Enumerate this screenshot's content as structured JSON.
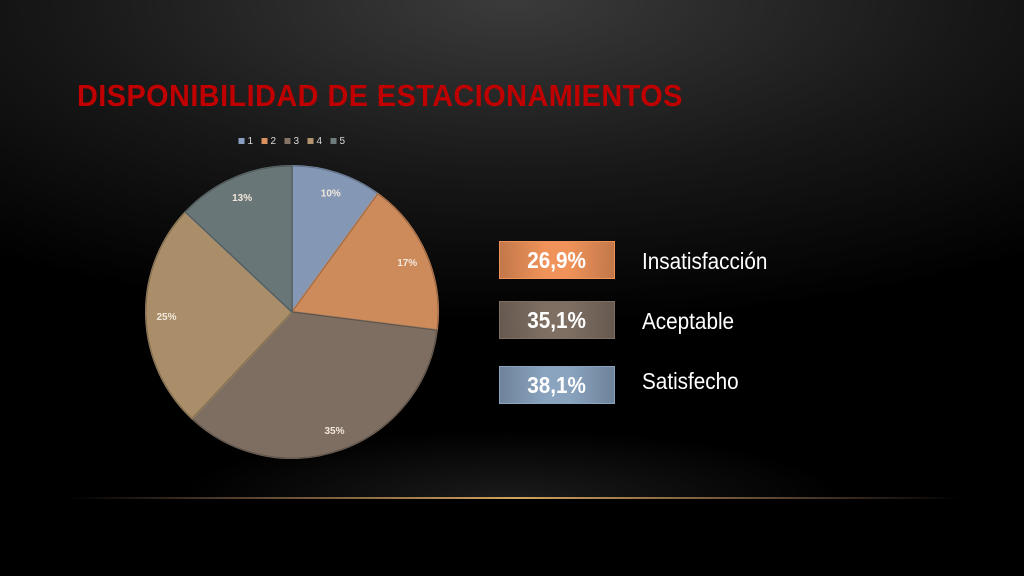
{
  "slide": {
    "title": "DISPONIBILIDAD DE ESTACIONAMIENTOS"
  },
  "chart_data": {
    "type": "pie",
    "title": "",
    "legend_position": "top",
    "categories": [
      "1",
      "2",
      "3",
      "4",
      "5"
    ],
    "values": [
      10,
      17,
      35,
      25,
      13
    ],
    "data_labels": [
      "10%",
      "17%",
      "35%",
      "25%",
      "13%"
    ],
    "colors": [
      "#8ba0c0",
      "#d8915f",
      "#857466",
      "#b2956e",
      "#6f7c7e"
    ]
  },
  "summary": [
    {
      "value": "26,9%",
      "label": "Insatisfacción",
      "color": "#f0935a"
    },
    {
      "value": "35,1%",
      "label": "Aceptable",
      "color": "#7f6f63"
    },
    {
      "value": "38,1%",
      "label": "Satisfecho",
      "color": "#8aa4c0"
    }
  ]
}
